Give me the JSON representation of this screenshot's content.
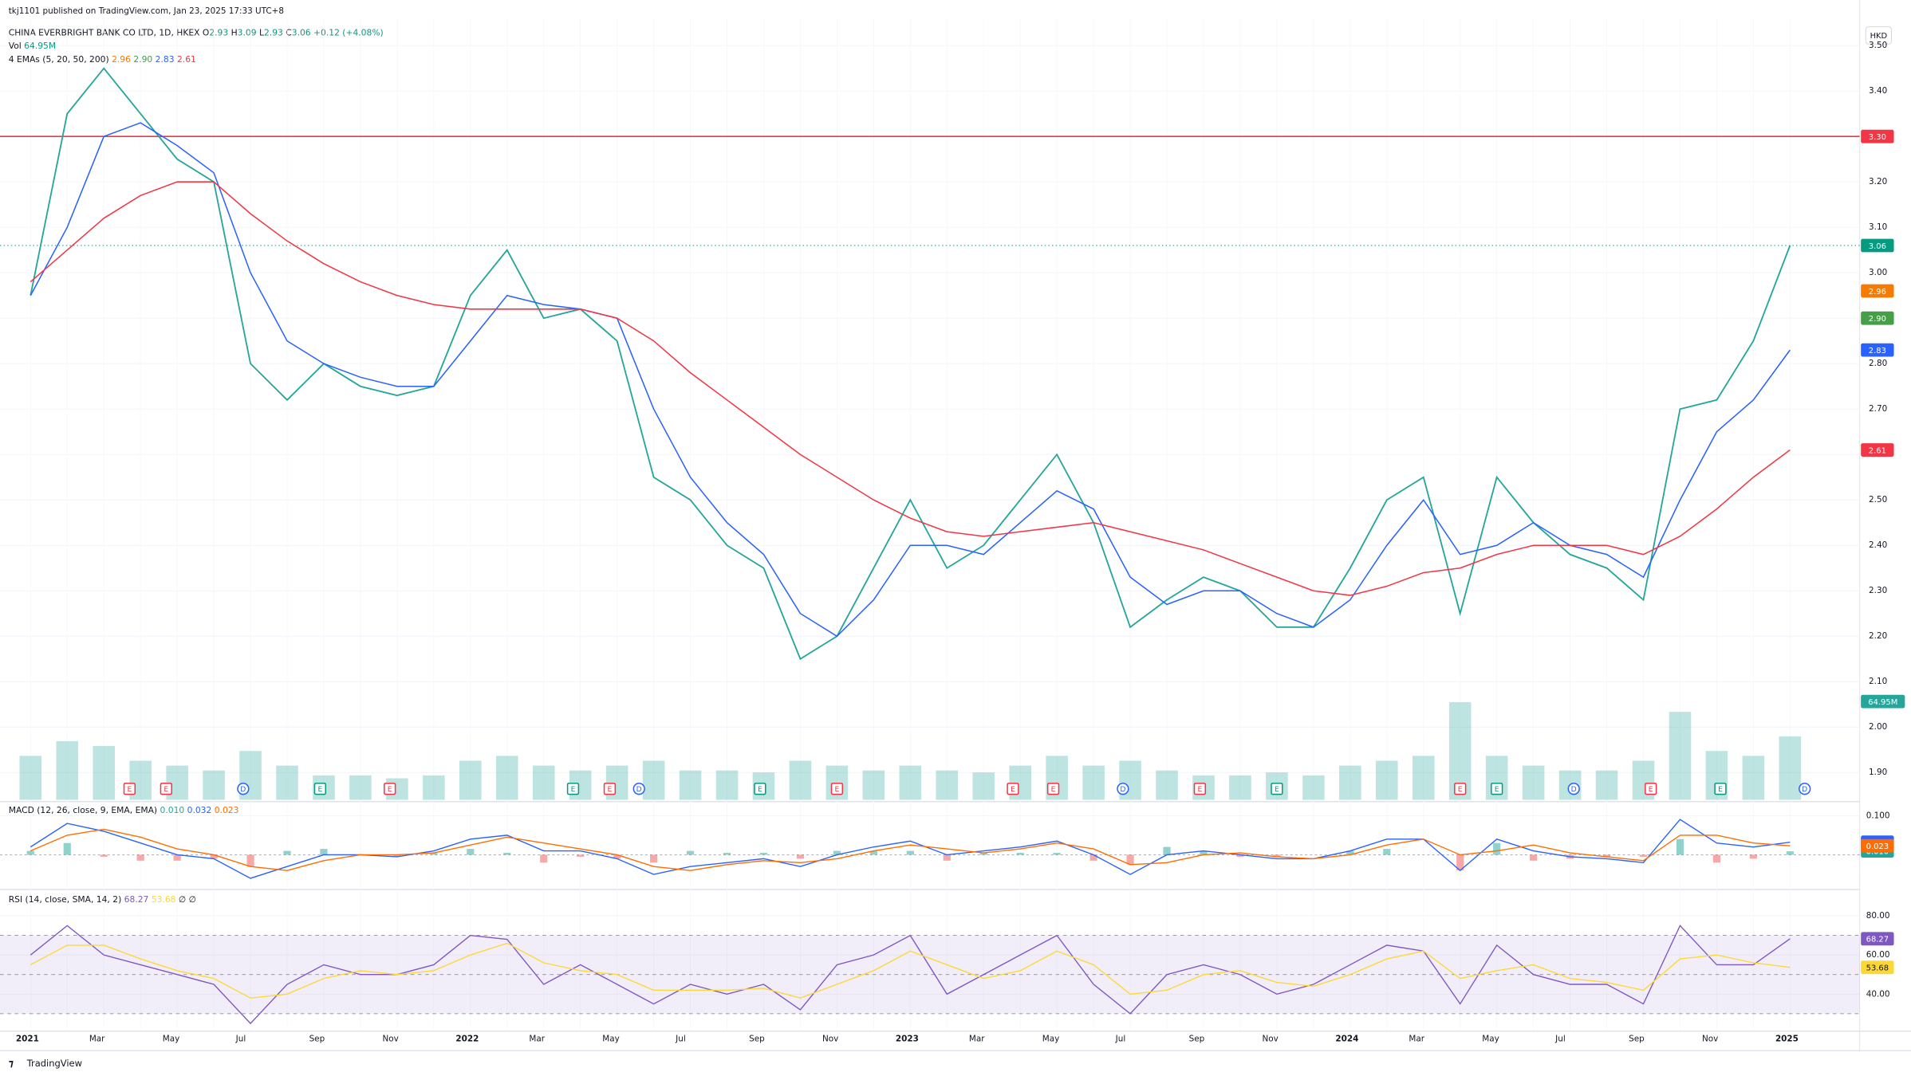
{
  "header": {
    "publisher": "tkj1101 published on TradingView.com, Jan 23, 2025 17:33 UTC+8",
    "symbol": "CHINA EVERBRIGHT BANK CO LTD, 1D, HKEX",
    "ohlc": [
      {
        "key": "O",
        "value": "2.93"
      },
      {
        "key": "H",
        "value": "3.09"
      },
      {
        "key": "L",
        "value": "2.93"
      },
      {
        "key": "C",
        "value": "3.06"
      }
    ],
    "change": "+0.12 (+4.08%)",
    "currency": "HKD",
    "brand": "TradingView"
  },
  "chart_data": [
    {
      "type": "line",
      "categories": [
        "2021",
        null,
        "Mar",
        null,
        "May",
        null,
        "Jul",
        null,
        "Sep",
        null,
        "Nov",
        null,
        "2022",
        null,
        "Mar",
        null,
        "May",
        null,
        "Jul",
        null,
        "Sep",
        null,
        "Nov",
        null,
        "2023",
        null,
        "Mar",
        null,
        "May",
        null,
        "Jul",
        null,
        "Sep",
        null,
        "Nov",
        null,
        "2024",
        null,
        "Mar",
        null,
        "May",
        null,
        "Jul",
        null,
        "Sep",
        null,
        "Nov",
        null,
        "2025"
      ],
      "ylim": [
        1.84,
        3.56
      ],
      "yticks": [
        {
          "value": 1.9,
          "label": "1.90"
        },
        {
          "value": 2.0,
          "label": "2.00"
        },
        {
          "value": 2.1,
          "label": "2.10"
        },
        {
          "value": 2.2,
          "label": "2.20"
        },
        {
          "value": 2.3,
          "label": "2.30"
        },
        {
          "value": 2.4,
          "label": "2.40"
        },
        {
          "value": 2.5,
          "label": "2.50"
        },
        {
          "value": 2.6,
          "label": "2.60"
        },
        {
          "value": 2.7,
          "label": "2.70"
        },
        {
          "value": 2.8,
          "label": "2.80"
        },
        {
          "value": 2.9,
          "label": "2.90"
        },
        {
          "value": 3.0,
          "label": "3.00"
        },
        {
          "value": 3.1,
          "label": "3.10"
        },
        {
          "value": 3.2,
          "label": "3.20"
        },
        {
          "value": 3.3,
          "label": "3.30"
        },
        {
          "value": 3.4,
          "label": "3.40"
        },
        {
          "value": 3.5,
          "label": "3.50"
        }
      ],
      "series": [
        {
          "color": "#26a69a",
          "values": [
            2.95,
            3.35,
            3.45,
            3.35,
            3.25,
            3.2,
            2.8,
            2.72,
            2.8,
            2.75,
            2.73,
            2.75,
            2.95,
            3.05,
            2.9,
            2.92,
            2.85,
            2.55,
            2.5,
            2.4,
            2.35,
            2.15,
            2.2,
            2.35,
            2.5,
            2.35,
            2.4,
            2.5,
            2.6,
            2.45,
            2.22,
            2.28,
            2.33,
            2.3,
            2.22,
            2.22,
            2.35,
            2.5,
            2.55,
            2.25,
            2.55,
            2.45,
            2.38,
            2.35,
            2.28,
            2.7,
            2.72,
            2.85,
            3.06
          ]
        },
        {
          "color": "#2962ff",
          "values": [
            2.95,
            3.1,
            3.3,
            3.33,
            3.28,
            3.22,
            3.0,
            2.85,
            2.8,
            2.77,
            2.75,
            2.75,
            2.85,
            2.95,
            2.93,
            2.92,
            2.9,
            2.7,
            2.55,
            2.45,
            2.38,
            2.25,
            2.2,
            2.28,
            2.4,
            2.4,
            2.38,
            2.45,
            2.52,
            2.48,
            2.33,
            2.27,
            2.3,
            2.3,
            2.25,
            2.22,
            2.28,
            2.4,
            2.5,
            2.38,
            2.4,
            2.45,
            2.4,
            2.38,
            2.33,
            2.5,
            2.65,
            2.72,
            2.83
          ]
        },
        {
          "color": "#f23645",
          "values": [
            2.98,
            3.05,
            3.12,
            3.17,
            3.2,
            3.2,
            3.13,
            3.07,
            3.02,
            2.98,
            2.95,
            2.93,
            2.92,
            2.92,
            2.92,
            2.92,
            2.9,
            2.85,
            2.78,
            2.72,
            2.66,
            2.6,
            2.55,
            2.5,
            2.46,
            2.43,
            2.42,
            2.43,
            2.44,
            2.45,
            2.43,
            2.41,
            2.39,
            2.36,
            2.33,
            2.3,
            2.29,
            2.31,
            2.34,
            2.35,
            2.38,
            2.4,
            2.4,
            2.4,
            2.38,
            2.42,
            2.48,
            2.55,
            2.61
          ]
        }
      ],
      "volume": {
        "label": "Vol",
        "value_label": "64.95M",
        "color": "#26a69a",
        "values": [
          45,
          60,
          55,
          40,
          35,
          30,
          50,
          35,
          25,
          25,
          22,
          25,
          40,
          45,
          35,
          30,
          35,
          40,
          30,
          30,
          28,
          40,
          35,
          30,
          35,
          30,
          28,
          35,
          45,
          35,
          40,
          30,
          25,
          25,
          28,
          25,
          35,
          40,
          45,
          100,
          45,
          35,
          30,
          30,
          40,
          90,
          50,
          45,
          64.95
        ]
      },
      "ema_legend": {
        "label": "4 EMAs (5, 20, 50, 200)",
        "values": [
          {
            "value": 2.96,
            "label": "2.96",
            "color": "#f57c00"
          },
          {
            "value": 2.9,
            "label": "2.90",
            "color": "#43a047"
          },
          {
            "value": 2.83,
            "label": "2.83",
            "color": "#2962ff"
          },
          {
            "value": 2.61,
            "label": "2.61",
            "color": "#f23645"
          }
        ]
      },
      "last": {
        "value": 3.06,
        "label": "3.06",
        "color": "#089981"
      },
      "hline": {
        "value": 3.3,
        "label": "3.30",
        "color": "#f23645"
      },
      "events": [
        {
          "label": "E",
          "x": 2.7,
          "color": "#f23645"
        },
        {
          "label": "E",
          "x": 3.7,
          "color": "#f23645"
        },
        {
          "label": "D",
          "x": 5.8,
          "color": "#2962ff"
        },
        {
          "label": "E",
          "x": 7.9,
          "color": "#089981"
        },
        {
          "label": "E",
          "x": 9.8,
          "color": "#f23645"
        },
        {
          "label": "E",
          "x": 14.8,
          "color": "#089981"
        },
        {
          "label": "E",
          "x": 15.8,
          "color": "#f23645"
        },
        {
          "label": "D",
          "x": 16.6,
          "color": "#2962ff"
        },
        {
          "label": "E",
          "x": 19.9,
          "color": "#089981"
        },
        {
          "label": "E",
          "x": 22.0,
          "color": "#f23645"
        },
        {
          "label": "E",
          "x": 26.8,
          "color": "#f23645"
        },
        {
          "label": "E",
          "x": 27.9,
          "color": "#f23645"
        },
        {
          "label": "D",
          "x": 29.8,
          "color": "#2962ff"
        },
        {
          "label": "E",
          "x": 31.9,
          "color": "#f23645"
        },
        {
          "label": "E",
          "x": 34.0,
          "color": "#089981"
        },
        {
          "label": "E",
          "x": 39.0,
          "color": "#f23645"
        },
        {
          "label": "E",
          "x": 40.0,
          "color": "#089981"
        },
        {
          "label": "D",
          "x": 42.1,
          "color": "#2962ff"
        },
        {
          "label": "E",
          "x": 44.2,
          "color": "#f23645"
        },
        {
          "label": "E",
          "x": 46.1,
          "color": "#089981"
        },
        {
          "label": "D",
          "x": 48.4,
          "color": "#2962ff"
        }
      ]
    },
    {
      "type": "line",
      "label": "MACD (12, 26, close, 9, EMA, EMA)",
      "ylim": [
        -0.084,
        0.131
      ],
      "yticks": [
        {
          "value": 0.1,
          "label": "0.100"
        }
      ],
      "zero_line": 0,
      "series": [
        {
          "color": "#2962ff",
          "values": [
            0.02,
            0.08,
            0.06,
            0.03,
            0.0,
            -0.01,
            -0.06,
            -0.03,
            0.0,
            0.0,
            -0.005,
            0.01,
            0.04,
            0.05,
            0.01,
            0.01,
            -0.01,
            -0.05,
            -0.03,
            -0.02,
            -0.01,
            -0.03,
            0.0,
            0.02,
            0.035,
            0.0,
            0.01,
            0.02,
            0.035,
            0.0,
            -0.05,
            0.0,
            0.01,
            0.0,
            -0.01,
            -0.01,
            0.01,
            0.04,
            0.04,
            -0.04,
            0.04,
            0.01,
            -0.005,
            -0.01,
            -0.02,
            0.09,
            0.03,
            0.02,
            0.032
          ]
        },
        {
          "color": "#ff6d00",
          "values": [
            0.01,
            0.05,
            0.065,
            0.045,
            0.015,
            0.0,
            -0.03,
            -0.04,
            -0.015,
            0.0,
            0.0,
            0.005,
            0.025,
            0.045,
            0.03,
            0.015,
            0.0,
            -0.03,
            -0.04,
            -0.025,
            -0.015,
            -0.02,
            -0.01,
            0.01,
            0.025,
            0.015,
            0.005,
            0.015,
            0.03,
            0.015,
            -0.025,
            -0.02,
            0.0,
            0.005,
            -0.005,
            -0.01,
            0.0,
            0.025,
            0.04,
            0.0,
            0.01,
            0.025,
            0.005,
            -0.005,
            -0.015,
            0.05,
            0.05,
            0.03,
            0.023
          ]
        }
      ],
      "readout": [
        {
          "value": 0.01,
          "label": "0.010",
          "color": "#26a69a"
        },
        {
          "value": 0.032,
          "label": "0.032",
          "color": "#2962ff"
        },
        {
          "value": 0.023,
          "label": "0.023",
          "color": "#ff6d00"
        }
      ]
    },
    {
      "type": "line",
      "label": "RSI (14, close, SMA, 14, 2)",
      "ylim": [
        22,
        92.5
      ],
      "yticks": [
        {
          "value": 80,
          "label": "80.00"
        },
        {
          "value": 60,
          "label": "60.00"
        },
        {
          "value": 40,
          "label": "40.00"
        }
      ],
      "bands": [
        70,
        50,
        30
      ],
      "series": [
        {
          "color": "#7e57c2",
          "values": [
            60,
            75,
            60,
            55,
            50,
            45,
            25,
            45,
            55,
            50,
            50,
            55,
            70,
            68,
            45,
            55,
            45,
            35,
            45,
            40,
            45,
            32,
            55,
            60,
            70,
            40,
            50,
            60,
            70,
            45,
            30,
            50,
            55,
            50,
            40,
            45,
            55,
            65,
            62,
            35,
            65,
            50,
            45,
            45,
            35,
            75,
            55,
            55,
            68.27
          ]
        },
        {
          "color": "#fdd835",
          "values": [
            55,
            65,
            65,
            58,
            52,
            48,
            38,
            40,
            48,
            52,
            50,
            52,
            60,
            66,
            56,
            52,
            50,
            42,
            42,
            42,
            43,
            38,
            45,
            52,
            62,
            55,
            48,
            52,
            62,
            55,
            40,
            42,
            50,
            52,
            46,
            44,
            50,
            58,
            62,
            48,
            52,
            55,
            48,
            46,
            42,
            58,
            60,
            56,
            53.68
          ]
        }
      ],
      "readout": [
        {
          "value": 68.27,
          "label": "68.27",
          "color": "#7e57c2"
        },
        {
          "value": 53.68,
          "label": "53.68",
          "color": "#fdd835"
        }
      ],
      "empty": [
        "∅",
        "∅"
      ]
    }
  ]
}
